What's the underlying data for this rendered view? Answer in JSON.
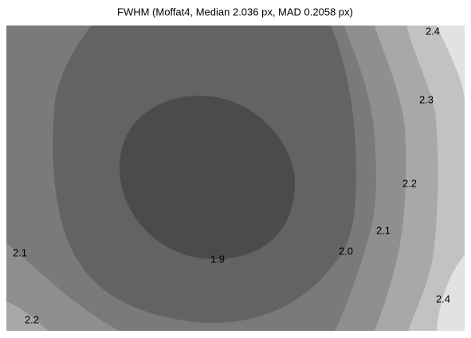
{
  "chart_data": {
    "type": "contour",
    "title": "FWHM (Moffat4, Median 2.036 px, MAD 0.2058 px)",
    "levels": [
      1.9,
      {
        "value": 2,
        "label": "2.0"
      },
      2.1,
      2.2,
      2.3,
      2.4
    ],
    "colors": [
      "#4b4b4b",
      "#636363",
      "#7a7a7a",
      "#8f8f8f",
      "#a8a8a8",
      "#c2c2c2",
      "#e2e2e2"
    ]
  }
}
